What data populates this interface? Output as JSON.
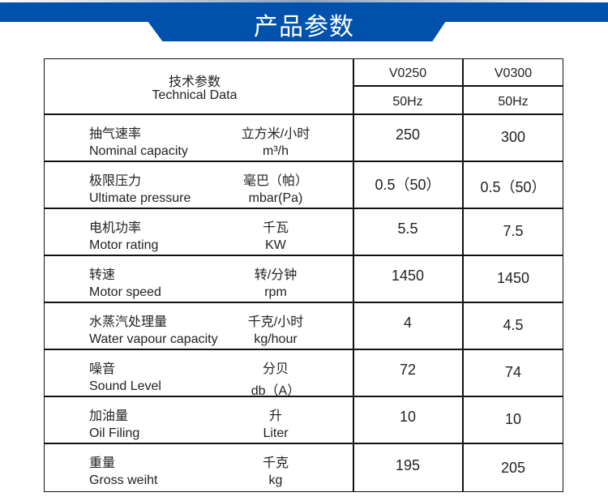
{
  "banner": {
    "title": "产品参数",
    "color": "#0051ab"
  },
  "header": {
    "label_cn": "技术参数",
    "label_en": "Technical Data",
    "models": [
      {
        "name": "V0250",
        "freq": "50Hz"
      },
      {
        "name": "V0300",
        "freq": "50Hz"
      }
    ]
  },
  "rows": [
    {
      "cn": "抽气速率",
      "en": "Nominal capacity",
      "unit_cn": "立方米/小时",
      "unit_en": "m³/h",
      "values": [
        "250",
        "300"
      ]
    },
    {
      "cn": "极限压力",
      "en": "Ultimate pressure",
      "unit_cn": "毫巴（帕）",
      "unit_en": "mbar(Pa)",
      "values": [
        "0.5（50）",
        "0.5（50）"
      ]
    },
    {
      "cn": "电机功率",
      "en": "Motor rating",
      "unit_cn": "千瓦",
      "unit_en": "KW",
      "values": [
        "5.5",
        "7.5"
      ]
    },
    {
      "cn": "转速",
      "en": "Motor speed",
      "unit_cn": "转/分钟",
      "unit_en": "rpm",
      "values": [
        "1450",
        "1450"
      ]
    },
    {
      "cn": "水蒸汽处理量",
      "en": "Water vapour capacity",
      "unit_cn": "千克/小时",
      "unit_en": "kg/hour",
      "values": [
        "4",
        "4.5"
      ]
    },
    {
      "cn": "噪音",
      "en": "Sound Level",
      "unit_cn": "分贝",
      "unit_en": "db（A）",
      "values": [
        "72",
        "74"
      ]
    },
    {
      "cn": "加油量",
      "en": "Oil Filing",
      "unit_cn": "升",
      "unit_en": "Liter",
      "values": [
        "10",
        "10"
      ]
    },
    {
      "cn": "重量",
      "en": "Gross weiht",
      "unit_cn": "千克",
      "unit_en": "kg",
      "values": [
        "195",
        "205"
      ]
    }
  ]
}
